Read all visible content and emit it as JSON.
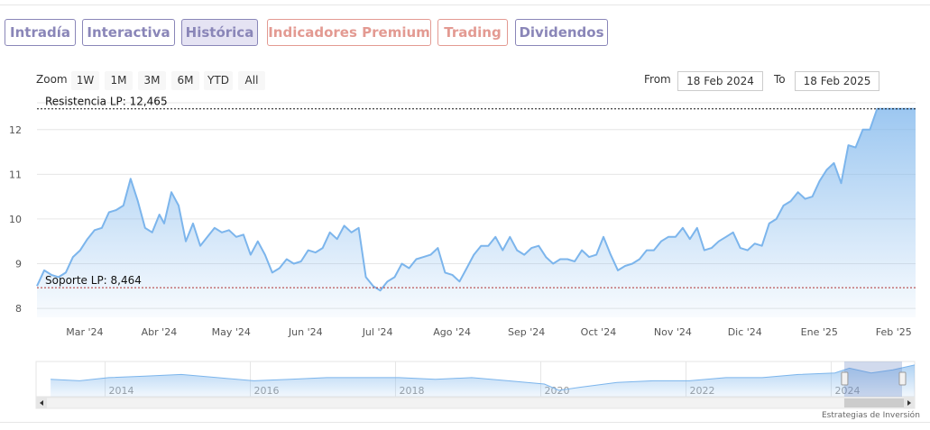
{
  "tabs": [
    {
      "label": "Intradía",
      "color": "#8a86b8",
      "active": false
    },
    {
      "label": "Interactiva",
      "color": "#8a86b8",
      "active": false
    },
    {
      "label": "Histórica",
      "color": "#8a86b8",
      "active": true
    },
    {
      "label": "Indicadores Premium",
      "color": "#e39a92",
      "active": false
    },
    {
      "label": "Trading",
      "color": "#e39a92",
      "active": false
    },
    {
      "label": "Dividendos",
      "color": "#8a86b8",
      "active": false
    }
  ],
  "range_selector": {
    "zoom_label": "Zoom",
    "buttons": [
      "1W",
      "1M",
      "3M",
      "6M",
      "YTD",
      "All"
    ],
    "from_label": "From",
    "from_value": "18 Feb 2024",
    "to_label": "To",
    "to_value": "18 Feb 2025"
  },
  "credit": "Estrategias de Inversión",
  "chart_data": {
    "type": "area",
    "title": "",
    "xlabel": "",
    "ylabel": "",
    "ylim": [
      7.8,
      12.6
    ],
    "y_ticks": [
      8,
      9,
      10,
      11,
      12
    ],
    "x_start": "2024-02-18",
    "x_end": "2025-02-18",
    "x_ticks": [
      {
        "label": "Mar '24",
        "date": "2024-03-01"
      },
      {
        "label": "Abr '24",
        "date": "2024-04-01"
      },
      {
        "label": "May '24",
        "date": "2024-05-01"
      },
      {
        "label": "Jun '24",
        "date": "2024-06-01"
      },
      {
        "label": "Jul '24",
        "date": "2024-07-01"
      },
      {
        "label": "Ago '24",
        "date": "2024-08-01"
      },
      {
        "label": "Sep '24",
        "date": "2024-09-01"
      },
      {
        "label": "Oct '24",
        "date": "2024-10-01"
      },
      {
        "label": "Nov '24",
        "date": "2024-11-01"
      },
      {
        "label": "Dic '24",
        "date": "2024-12-01"
      },
      {
        "label": "Ene '25",
        "date": "2025-01-01"
      },
      {
        "label": "Feb '25",
        "date": "2025-02-01"
      }
    ],
    "grid": true,
    "line_color": "#7cb5ec",
    "series": [
      {
        "x": [
          "2024-02-18",
          "2024-02-21",
          "2024-02-24",
          "2024-02-27",
          "2024-03-01",
          "2024-03-04",
          "2024-03-07",
          "2024-03-10",
          "2024-03-13",
          "2024-03-16",
          "2024-03-19",
          "2024-03-22",
          "2024-03-25",
          "2024-03-28",
          "2024-03-31",
          "2024-04-03",
          "2024-04-06",
          "2024-04-09",
          "2024-04-11",
          "2024-04-14",
          "2024-04-17",
          "2024-04-20",
          "2024-04-23",
          "2024-04-26",
          "2024-04-29",
          "2024-05-02",
          "2024-05-05",
          "2024-05-08",
          "2024-05-11",
          "2024-05-14",
          "2024-05-17",
          "2024-05-20",
          "2024-05-23",
          "2024-05-26",
          "2024-05-29",
          "2024-06-01",
          "2024-06-04",
          "2024-06-07",
          "2024-06-10",
          "2024-06-13",
          "2024-06-16",
          "2024-06-19",
          "2024-06-22",
          "2024-06-25",
          "2024-06-28",
          "2024-07-01",
          "2024-07-04",
          "2024-07-07",
          "2024-07-10",
          "2024-07-13",
          "2024-07-16",
          "2024-07-19",
          "2024-07-22",
          "2024-07-25",
          "2024-07-28",
          "2024-07-31",
          "2024-08-03",
          "2024-08-06",
          "2024-08-09",
          "2024-08-12",
          "2024-08-15",
          "2024-08-18",
          "2024-08-21",
          "2024-08-24",
          "2024-08-27",
          "2024-08-30",
          "2024-09-02",
          "2024-09-05",
          "2024-09-08",
          "2024-09-11",
          "2024-09-14",
          "2024-09-17",
          "2024-09-20",
          "2024-09-23",
          "2024-09-26",
          "2024-09-29",
          "2024-10-02",
          "2024-10-05",
          "2024-10-08",
          "2024-10-11",
          "2024-10-14",
          "2024-10-17",
          "2024-10-20",
          "2024-10-23",
          "2024-10-26",
          "2024-10-29",
          "2024-11-01",
          "2024-11-04",
          "2024-11-07",
          "2024-11-10",
          "2024-11-13",
          "2024-11-16",
          "2024-11-19",
          "2024-11-22",
          "2024-11-25",
          "2024-11-28",
          "2024-12-01",
          "2024-12-04",
          "2024-12-07",
          "2024-12-10",
          "2024-12-13",
          "2024-12-16",
          "2024-12-19",
          "2024-12-22",
          "2024-12-25",
          "2024-12-28",
          "2024-12-31",
          "2025-01-03",
          "2025-01-06",
          "2025-01-09",
          "2025-01-12",
          "2025-01-15",
          "2025-01-18",
          "2025-01-21",
          "2025-01-24",
          "2025-01-27",
          "2025-01-30",
          "2025-02-02",
          "2025-02-05",
          "2025-02-08",
          "2025-02-11",
          "2025-02-14",
          "2025-02-18"
        ],
        "y": [
          8.5,
          8.85,
          8.75,
          8.7,
          8.8,
          9.15,
          9.3,
          9.55,
          9.75,
          9.8,
          10.15,
          10.2,
          10.3,
          10.9,
          10.4,
          9.8,
          9.7,
          10.1,
          9.9,
          10.6,
          10.3,
          9.5,
          9.9,
          9.4,
          9.6,
          9.8,
          9.7,
          9.75,
          9.6,
          9.65,
          9.2,
          9.5,
          9.2,
          8.8,
          8.9,
          9.1,
          9.0,
          9.05,
          9.3,
          9.25,
          9.35,
          9.7,
          9.55,
          9.85,
          9.7,
          9.8,
          8.7,
          8.5,
          8.4,
          8.6,
          8.7,
          9.0,
          8.9,
          9.1,
          9.15,
          9.2,
          9.35,
          8.8,
          8.75,
          8.6,
          8.9,
          9.2,
          9.4,
          9.4,
          9.6,
          9.3,
          9.6,
          9.3,
          9.2,
          9.35,
          9.4,
          9.15,
          9.0,
          9.1,
          9.1,
          9.05,
          9.3,
          9.15,
          9.2,
          9.6,
          9.2,
          8.85,
          8.95,
          9.0,
          9.1,
          9.3,
          9.3,
          9.5,
          9.6,
          9.6,
          9.8,
          9.55,
          9.8,
          9.3,
          9.35,
          9.5,
          9.6,
          9.7,
          9.35,
          9.3,
          9.45,
          9.4,
          9.9,
          10.0,
          10.3,
          10.4,
          10.6,
          10.45,
          10.5,
          10.85,
          11.1,
          11.25,
          10.8,
          11.65,
          11.6,
          12.0,
          12.0,
          12.465,
          12.465,
          12.465,
          12.465,
          12.465,
          12.465
        ]
      }
    ],
    "resistance": {
      "label": "Resistencia LP: 12,465",
      "value": 12.465
    },
    "support": {
      "label": "Soporte LP: 8,464",
      "value": 8.464
    },
    "navigator": {
      "x_ticks": [
        "2014",
        "2016",
        "2018",
        "2020",
        "2022",
        "2024"
      ],
      "x_range": [
        2013.0,
        2025.1
      ],
      "x": [
        2013.2,
        2013.6,
        2014.0,
        2014.5,
        2015.0,
        2015.5,
        2016.0,
        2016.5,
        2017.0,
        2017.5,
        2018.0,
        2018.5,
        2019.0,
        2019.5,
        2020.0,
        2020.2,
        2020.5,
        2021.0,
        2021.5,
        2022.0,
        2022.5,
        2023.0,
        2023.5,
        2024.0,
        2024.2,
        2024.5,
        2024.8,
        2025.1
      ],
      "y": [
        0.55,
        0.5,
        0.6,
        0.65,
        0.7,
        0.6,
        0.5,
        0.55,
        0.6,
        0.6,
        0.6,
        0.55,
        0.6,
        0.5,
        0.4,
        0.2,
        0.3,
        0.45,
        0.5,
        0.5,
        0.6,
        0.6,
        0.7,
        0.75,
        0.9,
        0.75,
        0.85,
        1.0
      ],
      "selected": [
        2024.13,
        2025.13
      ]
    }
  }
}
